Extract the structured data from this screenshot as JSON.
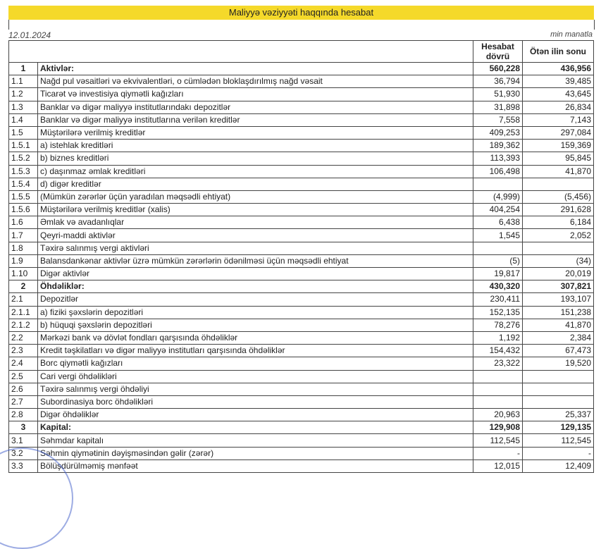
{
  "title": "Maliyyə vəziyyəti haqqında hesabat",
  "date": "12.01.2024",
  "unit": "min manatla",
  "columns": {
    "current": "Hesabat dövrü",
    "previous": "Ötən ilin sonu"
  },
  "rows": [
    {
      "n": "1",
      "label": "Aktivlər:",
      "current": "560,228",
      "previous": "436,956",
      "bold": true
    },
    {
      "n": "1.1",
      "label": "Nağd pul vəsaitləri və ekvivalentləri, o cümlədən bloklaşdırılmış nağd vəsait",
      "current": "36,794",
      "previous": "39,485"
    },
    {
      "n": "1.2",
      "label": "Ticarət və investisiya qiymətli kağızları",
      "current": "51,930",
      "previous": "43,645"
    },
    {
      "n": "1.3",
      "label": "Banklar və digər maliyyə institutlarındakı depozitlər",
      "current": "31,898",
      "previous": "26,834"
    },
    {
      "n": "1.4",
      "label": "Banklar və digər maliyyə institutlarına verilən kreditlər",
      "current": "7,558",
      "previous": "7,143"
    },
    {
      "n": "1.5",
      "label": "Müştərilərə verilmiş kreditlər",
      "current": "409,253",
      "previous": "297,084"
    },
    {
      "n": "1.5.1",
      "label": "a) istehlak kreditləri",
      "current": "189,362",
      "previous": "159,369"
    },
    {
      "n": "1.5.2",
      "label": "b) biznes kreditləri",
      "current": "113,393",
      "previous": "95,845"
    },
    {
      "n": "1.5.3",
      "label": "c) daşınmaz əmlak kreditləri",
      "current": "106,498",
      "previous": "41,870"
    },
    {
      "n": "1.5.4",
      "label": "d) digər kreditlər",
      "current": "",
      "previous": ""
    },
    {
      "n": "1.5.5",
      "label": "(Mümkün zərərlər üçün yaradılan məqsədli ehtiyat)",
      "current": "(4,999)",
      "previous": "(5,456)"
    },
    {
      "n": "1.5.6",
      "label": "Müştərilərə verilmiş kreditlər (xalis)",
      "current": "404,254",
      "previous": "291,628"
    },
    {
      "n": "1.6",
      "label": "Əmlak və avadanlıqlar",
      "current": "6,438",
      "previous": "6,184"
    },
    {
      "n": "1.7",
      "label": "Qeyri-maddi aktivlər",
      "current": "1,545",
      "previous": "2,052"
    },
    {
      "n": "1.8",
      "label": "Təxirə salınmış vergi aktivləri",
      "current": "",
      "previous": ""
    },
    {
      "n": "1.9",
      "label": "Balansdankənar aktivlər üzrə mümkün zərərlərin ödənilməsi üçün məqsədli ehtiyat",
      "current": "(5)",
      "previous": "(34)"
    },
    {
      "n": "1.10",
      "label": "Digər aktivlər",
      "current": "19,817",
      "previous": "20,019"
    },
    {
      "n": "2",
      "label": "Öhdəliklər:",
      "current": "430,320",
      "previous": "307,821",
      "bold": true
    },
    {
      "n": "2.1",
      "label": "Depozitlər",
      "current": "230,411",
      "previous": "193,107"
    },
    {
      "n": "2.1.1",
      "label": "a) fiziki şəxslərin depozitləri",
      "current": "152,135",
      "previous": "151,238"
    },
    {
      "n": "2.1.2",
      "label": "b) hüquqi şəxslərin depozitləri",
      "current": "78,276",
      "previous": "41,870"
    },
    {
      "n": "2.2",
      "label": "Mərkəzi bank və dövlət fondları qarşısında öhdəliklər",
      "current": "1,192",
      "previous": "2,384"
    },
    {
      "n": "2.3",
      "label": "Kredit təşkilatları və digər maliyyə institutları qarşısında öhdəliklər",
      "current": "154,432",
      "previous": "67,473"
    },
    {
      "n": "2.4",
      "label": "Borc qiymətli kağızları",
      "current": "23,322",
      "previous": "19,520"
    },
    {
      "n": "2.5",
      "label": "Cari vergi öhdəlikləri",
      "current": "",
      "previous": ""
    },
    {
      "n": "2.6",
      "label": "Təxirə salınmış vergi öhdəliyi",
      "current": "",
      "previous": ""
    },
    {
      "n": "2.7",
      "label": "Subordinasiya borc öhdəlikləri",
      "current": "",
      "previous": ""
    },
    {
      "n": "2.8",
      "label": "Digər öhdəliklər",
      "current": "20,963",
      "previous": "25,337"
    },
    {
      "n": "3",
      "label": "Kapital:",
      "current": "129,908",
      "previous": "129,135",
      "bold": true
    },
    {
      "n": "3.1",
      "label": "Səhmdar kapitalı",
      "current": "112,545",
      "previous": "112,545"
    },
    {
      "n": "3.2",
      "label": "Səhmin qiymətinin dəyişməsindən gəlir (zərər)",
      "current": "-",
      "previous": "-"
    },
    {
      "n": "3.3",
      "label": "Bölüşdürülməmiş mənfəət",
      "current": "12,015",
      "previous": "12,409"
    }
  ]
}
